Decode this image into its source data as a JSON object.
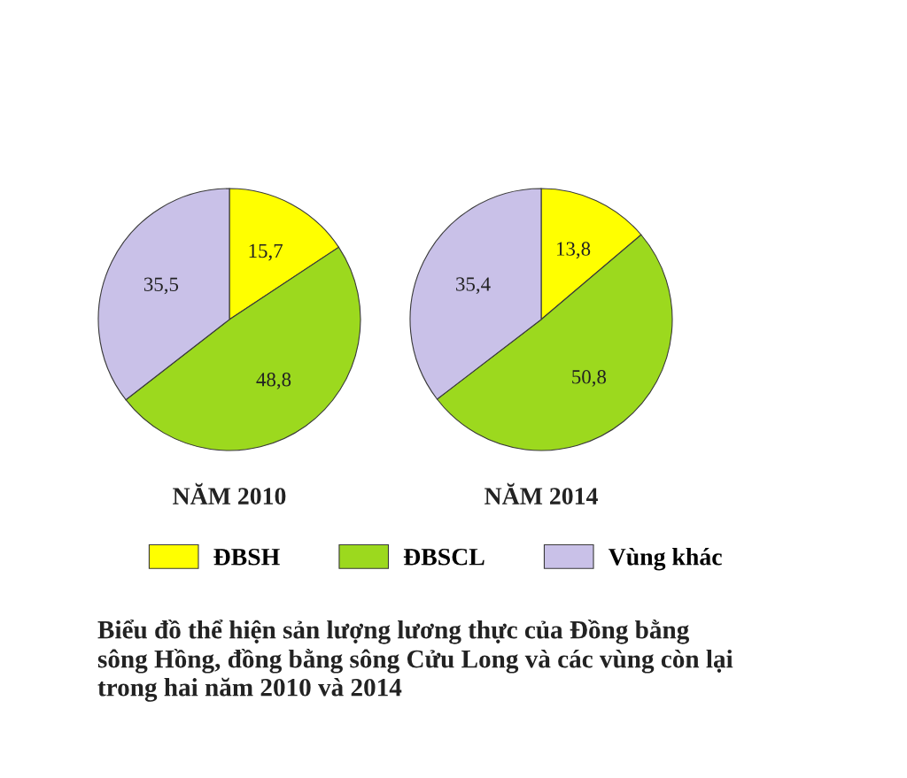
{
  "chart_data": [
    {
      "type": "pie",
      "title": "NĂM 2010",
      "categories": [
        "ĐBSH",
        "ĐBSCL",
        "Vùng khác"
      ],
      "values": [
        15.7,
        48.8,
        35.5
      ],
      "colors": [
        "#ffff00",
        "#9cd91e",
        "#c9c1e8"
      ],
      "value_labels": [
        "15,7",
        "48,8",
        "35,5"
      ],
      "legend": "bottom",
      "annotations": [
        "Biểu đồ thể hiện sản lượng lương thực của Đồng bằng sông Hồng, đồng bằng sông Cửu Long và các vùng còn lại trong hai năm 2010 và 2014"
      ]
    },
    {
      "type": "pie",
      "title": "NĂM 2014",
      "categories": [
        null,
        null,
        null
      ],
      "values": [
        13.8,
        50.8,
        35.4
      ],
      "colors": [
        "#ffff00",
        "#9cd91e",
        "#c9c1e8"
      ],
      "value_labels": [
        "13,8",
        "50,8",
        "35,4"
      ]
    }
  ]
}
